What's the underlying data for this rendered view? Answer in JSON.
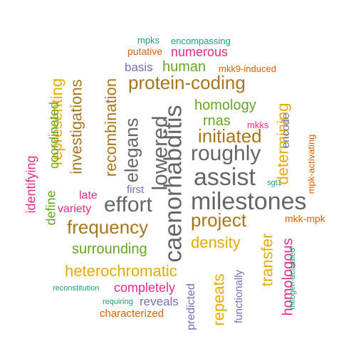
{
  "palette": {
    "green": "#1b9e77",
    "orange": "#d95f02",
    "purple": "#7570b3",
    "pink": "#e7298a",
    "lime": "#66a61e",
    "gold": "#e6ab02",
    "brown": "#a6761d",
    "gray": "#666666"
  },
  "words": [
    {
      "text": "caenorhabditis",
      "color": "gray"
    },
    {
      "text": "milestones",
      "color": "gray"
    },
    {
      "text": "lowered",
      "color": "gray"
    },
    {
      "text": "assist",
      "color": "gray"
    },
    {
      "text": "roughly",
      "color": "gray"
    },
    {
      "text": "elegans",
      "color": "gray"
    },
    {
      "text": "effort",
      "color": "gray"
    },
    {
      "text": "investigations",
      "color": "brown"
    },
    {
      "text": "recombination",
      "color": "brown"
    },
    {
      "text": "protein-coding",
      "color": "brown"
    },
    {
      "text": "initiated",
      "color": "brown"
    },
    {
      "text": "frequency",
      "color": "brown"
    },
    {
      "text": "project",
      "color": "brown"
    },
    {
      "text": "heterochromatic",
      "color": "gold"
    },
    {
      "text": "representing",
      "color": "gold"
    },
    {
      "text": "density",
      "color": "gold"
    },
    {
      "text": "repeats",
      "color": "gold"
    },
    {
      "text": "transfer",
      "color": "gold"
    },
    {
      "text": "determining",
      "color": "gold"
    },
    {
      "text": "homology",
      "color": "lime"
    },
    {
      "text": "rnas",
      "color": "lime"
    },
    {
      "text": "human",
      "color": "lime"
    },
    {
      "text": "surrounding",
      "color": "lime"
    },
    {
      "text": "coordinated",
      "color": "lime"
    },
    {
      "text": "define",
      "color": "lime"
    },
    {
      "text": "identifying",
      "color": "pink"
    },
    {
      "text": "homologous",
      "color": "pink"
    },
    {
      "text": "completely",
      "color": "pink"
    },
    {
      "text": "numerous",
      "color": "pink"
    },
    {
      "text": "variety",
      "color": "pink"
    },
    {
      "text": "late",
      "color": "pink"
    },
    {
      "text": "mkks",
      "color": "pink"
    },
    {
      "text": "basis",
      "color": "purple"
    },
    {
      "text": "first",
      "color": "purple"
    },
    {
      "text": "reveals",
      "color": "purple"
    },
    {
      "text": "predicted",
      "color": "purple"
    },
    {
      "text": "functionally",
      "color": "purple"
    },
    {
      "text": "encode",
      "color": "purple"
    },
    {
      "text": "putative",
      "color": "orange"
    },
    {
      "text": "mkk9-induced",
      "color": "orange"
    },
    {
      "text": "mkk-mpk",
      "color": "orange"
    },
    {
      "text": "mpk-activating",
      "color": "orange"
    },
    {
      "text": "characterized",
      "color": "orange"
    },
    {
      "text": "mpks",
      "color": "green"
    },
    {
      "text": "encompassing",
      "color": "green"
    },
    {
      "text": "sgt1",
      "color": "green"
    },
    {
      "text": "reconstitution",
      "color": "green"
    },
    {
      "text": "requiring",
      "color": "green"
    },
    {
      "text": "mitogen-activated",
      "color": "green"
    }
  ]
}
